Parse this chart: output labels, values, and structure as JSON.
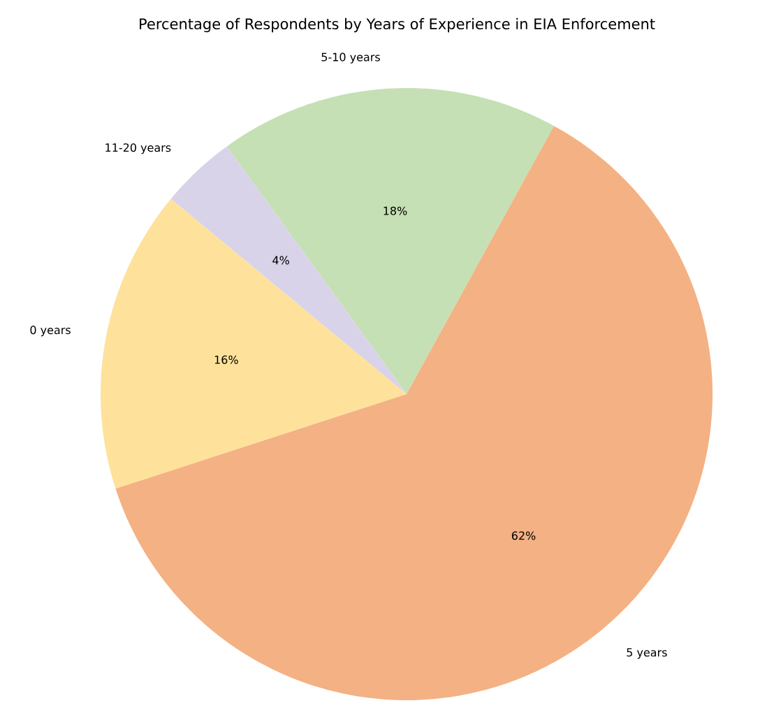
{
  "chart_data": {
    "type": "pie",
    "title": "Percentage of Respondents by Years of Experience in EIA Enforcement",
    "categories": [
      "5-10 years",
      "11-20 years",
      "0 years",
      "5 years"
    ],
    "values": [
      18,
      4,
      16,
      62
    ],
    "colors": [
      "#c5e0b4",
      "#d9d3e9",
      "#fee29b",
      "#f4b183"
    ],
    "value_labels": [
      "18%",
      "4%",
      "16%",
      "62%"
    ]
  }
}
